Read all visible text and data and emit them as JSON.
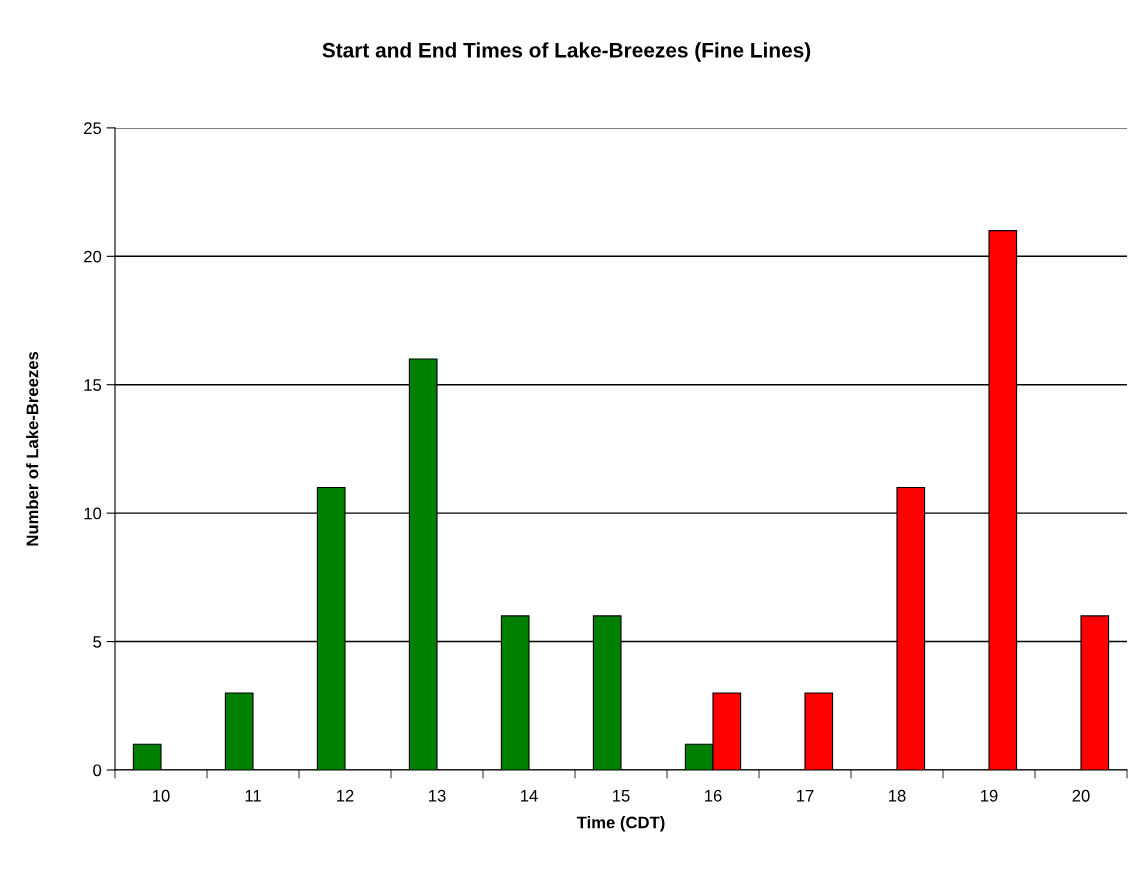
{
  "chart_data": {
    "type": "bar",
    "title": "Start and End Times of Lake-Breezes (Fine Lines)",
    "xlabel": "Time (CDT)",
    "ylabel": "Number of Lake-Breezes",
    "categories": [
      "10",
      "11",
      "12",
      "13",
      "14",
      "15",
      "16",
      "17",
      "18",
      "19",
      "20"
    ],
    "series": [
      {
        "color": "#008000",
        "values": [
          1,
          3,
          11,
          16,
          6,
          6,
          1,
          null,
          null,
          null,
          null
        ]
      },
      {
        "color": "#ff0000",
        "values": [
          null,
          null,
          null,
          null,
          null,
          null,
          3,
          3,
          11,
          21,
          6
        ]
      }
    ],
    "ylim": [
      0,
      25
    ],
    "yticks": [
      0,
      5,
      10,
      15,
      20,
      25
    ],
    "grid": "y",
    "legend": false
  }
}
